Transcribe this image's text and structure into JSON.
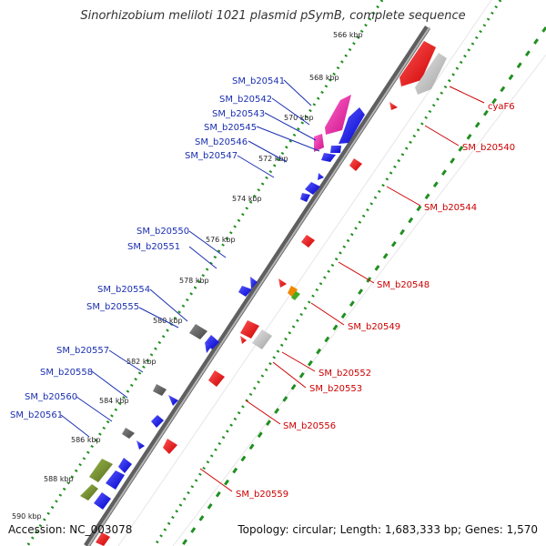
{
  "title": "Sinorhizobium meliloti 1021 plasmid pSymB, complete sequence",
  "footer": {
    "accession": "Accession: NC_003078",
    "topology": "Topology: circular; Length: 1,683,333 bp; Genes: 1,570"
  },
  "ruler": [
    {
      "label": "566 kbp"
    },
    {
      "label": "568 kbp"
    },
    {
      "label": "570 kbp"
    },
    {
      "label": "572 kbp"
    },
    {
      "label": "574 kbp"
    },
    {
      "label": "576 kbp"
    },
    {
      "label": "578 kbp"
    },
    {
      "label": "580 kbp"
    },
    {
      "label": "582 kbp"
    },
    {
      "label": "584 kbp"
    },
    {
      "label": "586 kbp"
    },
    {
      "label": "588 kbp"
    },
    {
      "label": "590 kbp"
    }
  ],
  "left_labels": [
    {
      "label": "SM_b20541"
    },
    {
      "label": "SM_b20542"
    },
    {
      "label": "SM_b20543"
    },
    {
      "label": "SM_b20545"
    },
    {
      "label": "SM_b20546"
    },
    {
      "label": "SM_b20547"
    },
    {
      "label": "SM_b20550"
    },
    {
      "label": "SM_b20551"
    },
    {
      "label": "SM_b20554"
    },
    {
      "label": "SM_b20555"
    },
    {
      "label": "SM_b20557"
    },
    {
      "label": "SM_b20558"
    },
    {
      "label": "SM_b20560"
    },
    {
      "label": "SM_b20561"
    }
  ],
  "right_labels": [
    {
      "label": "cyaF6"
    },
    {
      "label": "SM_b20540"
    },
    {
      "label": "SM_b20544"
    },
    {
      "label": "SM_b20548"
    },
    {
      "label": "SM_b20549"
    },
    {
      "label": "SM_b20552"
    },
    {
      "label": "SM_b20553"
    },
    {
      "label": "SM_b20556"
    },
    {
      "label": "SM_b20559"
    }
  ],
  "colors": {
    "backbone": "#7f7f7f",
    "ruler": "#1f8f1f",
    "forward_cds": "#1a1aff",
    "reverse_cds": "#ee0000",
    "pink_cds": "#ee22aa",
    "gray_feature": "#bfbfbf",
    "olive_feature": "#6b8e23",
    "left_label": "#1a2fb0",
    "right_label": "#cc0000"
  }
}
